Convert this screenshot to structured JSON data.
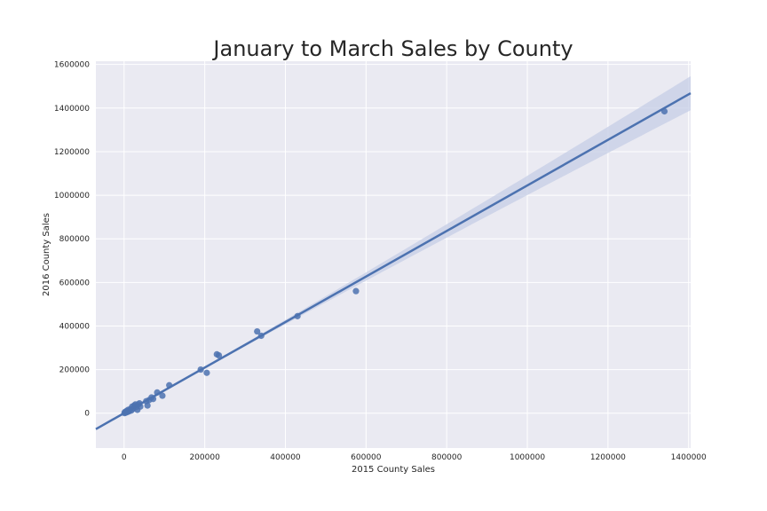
{
  "chart_data": {
    "type": "scatter",
    "title": "January to March Sales by County",
    "xlabel": "2015 County Sales",
    "ylabel": "2016 County Sales",
    "xlim": [
      -70000,
      1405000
    ],
    "ylim": [
      -160000,
      1615000
    ],
    "xticks": [
      0,
      200000,
      400000,
      600000,
      800000,
      1000000,
      1200000,
      1400000
    ],
    "yticks": [
      0,
      200000,
      400000,
      600000,
      800000,
      1000000,
      1200000,
      1400000,
      1600000
    ],
    "grid": true,
    "colors": {
      "background": "#EAEAF2",
      "points": "#4C72B0",
      "line": "#4C72B0",
      "band": "#C5CEE5"
    },
    "regression": {
      "slope": 1.045,
      "intercept": 0,
      "ci_half_width_at_xmax": 75000
    },
    "points": [
      {
        "x": 1340000,
        "y": 1385000
      },
      {
        "x": 575000,
        "y": 560000
      },
      {
        "x": 430000,
        "y": 445000
      },
      {
        "x": 340000,
        "y": 355000
      },
      {
        "x": 330000,
        "y": 375000
      },
      {
        "x": 235000,
        "y": 265000
      },
      {
        "x": 230000,
        "y": 270000
      },
      {
        "x": 205000,
        "y": 185000
      },
      {
        "x": 190000,
        "y": 200000
      },
      {
        "x": 112000,
        "y": 128000
      },
      {
        "x": 95000,
        "y": 80000
      },
      {
        "x": 82000,
        "y": 95000
      },
      {
        "x": 72000,
        "y": 65000
      },
      {
        "x": 68000,
        "y": 72000
      },
      {
        "x": 62000,
        "y": 60000
      },
      {
        "x": 58000,
        "y": 35000
      },
      {
        "x": 55000,
        "y": 55000
      },
      {
        "x": 40000,
        "y": 30000
      },
      {
        "x": 38000,
        "y": 45000
      },
      {
        "x": 35000,
        "y": 40000
      },
      {
        "x": 33000,
        "y": 15000
      },
      {
        "x": 30000,
        "y": 28000
      },
      {
        "x": 28000,
        "y": 40000
      },
      {
        "x": 25000,
        "y": 35000
      },
      {
        "x": 22000,
        "y": 20000
      },
      {
        "x": 20000,
        "y": 30000
      },
      {
        "x": 18000,
        "y": 12000
      },
      {
        "x": 15000,
        "y": 18000
      },
      {
        "x": 12000,
        "y": 8000
      },
      {
        "x": 10000,
        "y": 15000
      },
      {
        "x": 8000,
        "y": 5000
      },
      {
        "x": 6000,
        "y": 10000
      },
      {
        "x": 4000,
        "y": 2000
      },
      {
        "x": 2000,
        "y": 5000
      },
      {
        "x": 1000,
        "y": 0
      }
    ]
  }
}
